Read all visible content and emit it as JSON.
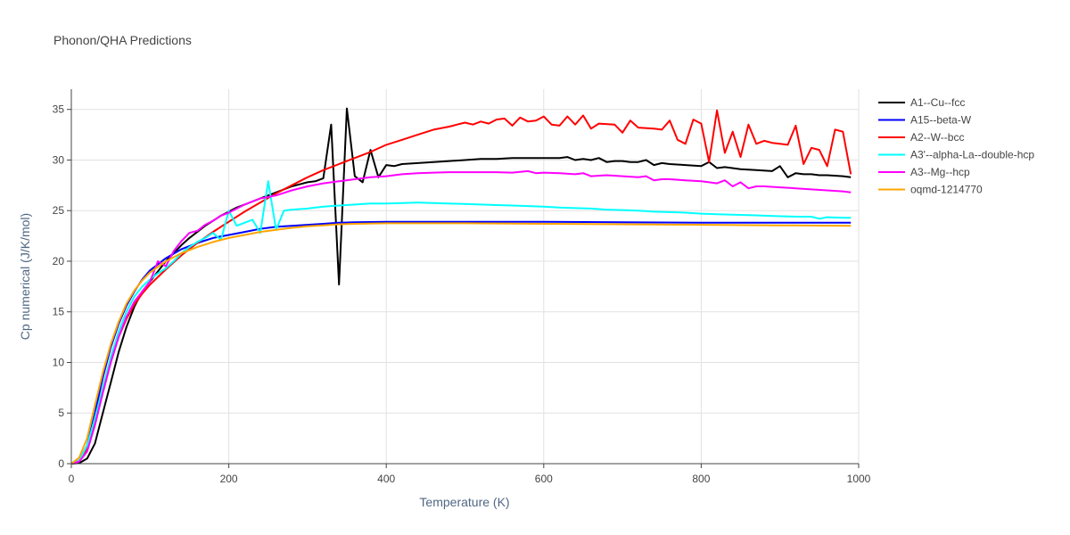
{
  "chart_data": {
    "type": "line",
    "title": "Phonon/QHA Predictions",
    "xlabel": "Temperature (K)",
    "ylabel": "Cp numerical (J/K/mol)",
    "xlim": [
      0,
      1000
    ],
    "ylim": [
      0,
      37
    ],
    "xticks": [
      0,
      200,
      400,
      600,
      800,
      1000
    ],
    "yticks": [
      0,
      5,
      10,
      15,
      20,
      25,
      30,
      35
    ],
    "grid": true,
    "legend_position": "top-right",
    "series": [
      {
        "name": "A1--Cu--fcc",
        "color": "#000000",
        "x": [
          0,
          10,
          20,
          30,
          40,
          50,
          60,
          70,
          80,
          90,
          100,
          110,
          120,
          130,
          140,
          150,
          160,
          170,
          180,
          190,
          200,
          210,
          220,
          230,
          240,
          250,
          260,
          270,
          280,
          290,
          300,
          310,
          320,
          330,
          340,
          350,
          360,
          370,
          380,
          390,
          400,
          410,
          420,
          440,
          460,
          480,
          500,
          520,
          540,
          560,
          580,
          600,
          620,
          630,
          640,
          650,
          660,
          670,
          680,
          690,
          700,
          710,
          720,
          730,
          740,
          750,
          760,
          780,
          800,
          810,
          820,
          830,
          850,
          870,
          890,
          900,
          910,
          920,
          930,
          940,
          950,
          960,
          980,
          990
        ],
        "y": [
          0,
          0.05,
          0.5,
          2,
          5,
          8,
          11,
          13.5,
          15.5,
          17,
          18,
          19,
          20,
          20.8,
          21.6,
          22.3,
          22.9,
          23.5,
          24,
          24.5,
          24.9,
          25.3,
          25.6,
          25.9,
          26.2,
          26.5,
          26.8,
          27.1,
          27.4,
          27.6,
          27.8,
          27.9,
          28.2,
          33.5,
          17.7,
          35.1,
          28.4,
          27.8,
          31,
          28.3,
          29.5,
          29.4,
          29.6,
          29.7,
          29.8,
          29.9,
          30,
          30.1,
          30.1,
          30.2,
          30.2,
          30.2,
          30.2,
          30.3,
          30,
          30.1,
          30,
          30.2,
          29.8,
          29.9,
          29.9,
          29.8,
          29.8,
          30,
          29.5,
          29.7,
          29.6,
          29.5,
          29.4,
          29.8,
          29.2,
          29.3,
          29.1,
          29,
          28.9,
          29.4,
          28.3,
          28.7,
          28.6,
          28.6,
          28.5,
          28.5,
          28.4,
          28.3
        ]
      },
      {
        "name": "A15--beta-W",
        "color": "#0000ff",
        "x": [
          0,
          10,
          20,
          30,
          40,
          50,
          60,
          70,
          80,
          90,
          100,
          120,
          140,
          160,
          180,
          200,
          220,
          240,
          260,
          280,
          300,
          320,
          340,
          360,
          400,
          500,
          600,
          700,
          800,
          900,
          990
        ],
        "y": [
          0,
          0.3,
          1.8,
          5,
          8.5,
          11.5,
          13.8,
          15.6,
          17,
          18.2,
          19.1,
          20.3,
          21.2,
          21.8,
          22.3,
          22.6,
          22.9,
          23.2,
          23.4,
          23.5,
          23.6,
          23.7,
          23.8,
          23.85,
          23.9,
          23.9,
          23.9,
          23.85,
          23.8,
          23.8,
          23.8
        ]
      },
      {
        "name": "A2--W--bcc",
        "color": "#ff0000",
        "x": [
          0,
          10,
          20,
          30,
          40,
          50,
          60,
          70,
          80,
          90,
          100,
          120,
          140,
          160,
          180,
          200,
          220,
          240,
          260,
          280,
          300,
          320,
          340,
          360,
          380,
          400,
          420,
          440,
          460,
          480,
          490,
          500,
          510,
          520,
          530,
          540,
          550,
          560,
          570,
          580,
          590,
          600,
          610,
          620,
          630,
          640,
          650,
          660,
          670,
          690,
          700,
          710,
          720,
          740,
          750,
          760,
          770,
          780,
          790,
          800,
          810,
          820,
          830,
          840,
          850,
          860,
          870,
          880,
          890,
          900,
          910,
          920,
          930,
          940,
          950,
          960,
          970,
          980,
          990
        ],
        "y": [
          0,
          0.3,
          1.5,
          4,
          7,
          10,
          12.5,
          14.3,
          15.7,
          16.8,
          17.7,
          19.2,
          20.6,
          21.8,
          22.9,
          23.9,
          24.9,
          25.8,
          26.7,
          27.5,
          28.3,
          29,
          29.6,
          30.2,
          30.8,
          31.5,
          32,
          32.5,
          33,
          33.3,
          33.5,
          33.7,
          33.5,
          33.8,
          33.6,
          34,
          34.1,
          33.4,
          34.2,
          33.8,
          33.9,
          34.3,
          33.5,
          33.4,
          34.3,
          33.5,
          34.4,
          33.1,
          33.6,
          33.5,
          32.7,
          33.9,
          33.2,
          33.1,
          33,
          33.9,
          32,
          31.6,
          34,
          33.6,
          29.8,
          34.9,
          30.7,
          32.8,
          30.3,
          33.5,
          31.6,
          31.9,
          31.7,
          31.6,
          31.5,
          33.4,
          29.6,
          31.2,
          31,
          29.4,
          33,
          32.8,
          28.6
        ]
      },
      {
        "name": "A3'--alpha-La--double-hcp",
        "color": "#00ffff",
        "x": [
          0,
          10,
          20,
          30,
          40,
          50,
          60,
          70,
          80,
          90,
          100,
          110,
          120,
          130,
          140,
          150,
          160,
          170,
          180,
          190,
          200,
          210,
          220,
          230,
          240,
          250,
          260,
          270,
          280,
          300,
          320,
          340,
          360,
          380,
          400,
          420,
          440,
          460,
          480,
          500,
          520,
          540,
          560,
          580,
          600,
          620,
          640,
          660,
          680,
          700,
          720,
          740,
          760,
          780,
          800,
          820,
          840,
          860,
          880,
          900,
          920,
          940,
          950,
          960,
          980,
          990
        ],
        "y": [
          0,
          0.3,
          1.8,
          4.5,
          7.5,
          10.5,
          13,
          15,
          16.5,
          17.5,
          18.2,
          18.8,
          19.3,
          20,
          20.8,
          21.4,
          21.9,
          22.3,
          22.8,
          22.1,
          25,
          23.5,
          23.8,
          24.1,
          22.8,
          27.9,
          23.1,
          25,
          25.1,
          25.2,
          25.4,
          25.5,
          25.6,
          25.7,
          25.7,
          25.75,
          25.8,
          25.75,
          25.7,
          25.65,
          25.6,
          25.55,
          25.5,
          25.45,
          25.4,
          25.3,
          25.25,
          25.2,
          25.1,
          25.05,
          25,
          24.9,
          24.85,
          24.8,
          24.7,
          24.65,
          24.6,
          24.55,
          24.5,
          24.45,
          24.4,
          24.4,
          24.2,
          24.35,
          24.3,
          24.3
        ]
      },
      {
        "name": "A3--Mg--hcp",
        "color": "#ff00ff",
        "x": [
          0,
          10,
          20,
          30,
          40,
          50,
          60,
          70,
          80,
          90,
          100,
          110,
          120,
          130,
          140,
          150,
          160,
          170,
          180,
          190,
          200,
          220,
          240,
          260,
          280,
          300,
          320,
          340,
          360,
          380,
          400,
          420,
          440,
          460,
          480,
          500,
          520,
          540,
          560,
          580,
          590,
          600,
          620,
          640,
          650,
          660,
          680,
          700,
          720,
          730,
          740,
          750,
          760,
          780,
          800,
          810,
          820,
          830,
          840,
          850,
          860,
          870,
          880,
          900,
          920,
          940,
          960,
          980,
          990
        ],
        "y": [
          0,
          0.2,
          1.2,
          3.8,
          7,
          10,
          12.5,
          14.5,
          16,
          17,
          18,
          20,
          19.5,
          21,
          22,
          22.8,
          23,
          23.6,
          24,
          24.5,
          24.8,
          25.6,
          26.2,
          26.5,
          27,
          27.4,
          27.7,
          27.9,
          28.1,
          28.3,
          28.4,
          28.6,
          28.7,
          28.75,
          28.8,
          28.8,
          28.8,
          28.8,
          28.75,
          28.9,
          28.7,
          28.75,
          28.7,
          28.6,
          28.7,
          28.4,
          28.5,
          28.4,
          28.3,
          28.4,
          28,
          28.1,
          28.1,
          28,
          27.9,
          27.8,
          27.7,
          28,
          27.4,
          27.8,
          27.2,
          27.4,
          27.4,
          27.3,
          27.2,
          27.1,
          27,
          26.9,
          26.8
        ]
      },
      {
        "name": "oqmd-1214770",
        "color": "#ffa500",
        "x": [
          0,
          10,
          20,
          30,
          40,
          50,
          60,
          70,
          80,
          90,
          100,
          120,
          140,
          160,
          180,
          200,
          220,
          240,
          260,
          280,
          300,
          320,
          340,
          360,
          400,
          500,
          600,
          700,
          800,
          900,
          990
        ],
        "y": [
          0,
          0.6,
          2.5,
          5.8,
          9,
          11.8,
          14,
          15.8,
          17.1,
          18.1,
          18.9,
          20,
          20.8,
          21.4,
          21.9,
          22.3,
          22.6,
          22.9,
          23.1,
          23.3,
          23.45,
          23.55,
          23.65,
          23.7,
          23.75,
          23.75,
          23.7,
          23.65,
          23.6,
          23.55,
          23.5
        ]
      }
    ]
  }
}
